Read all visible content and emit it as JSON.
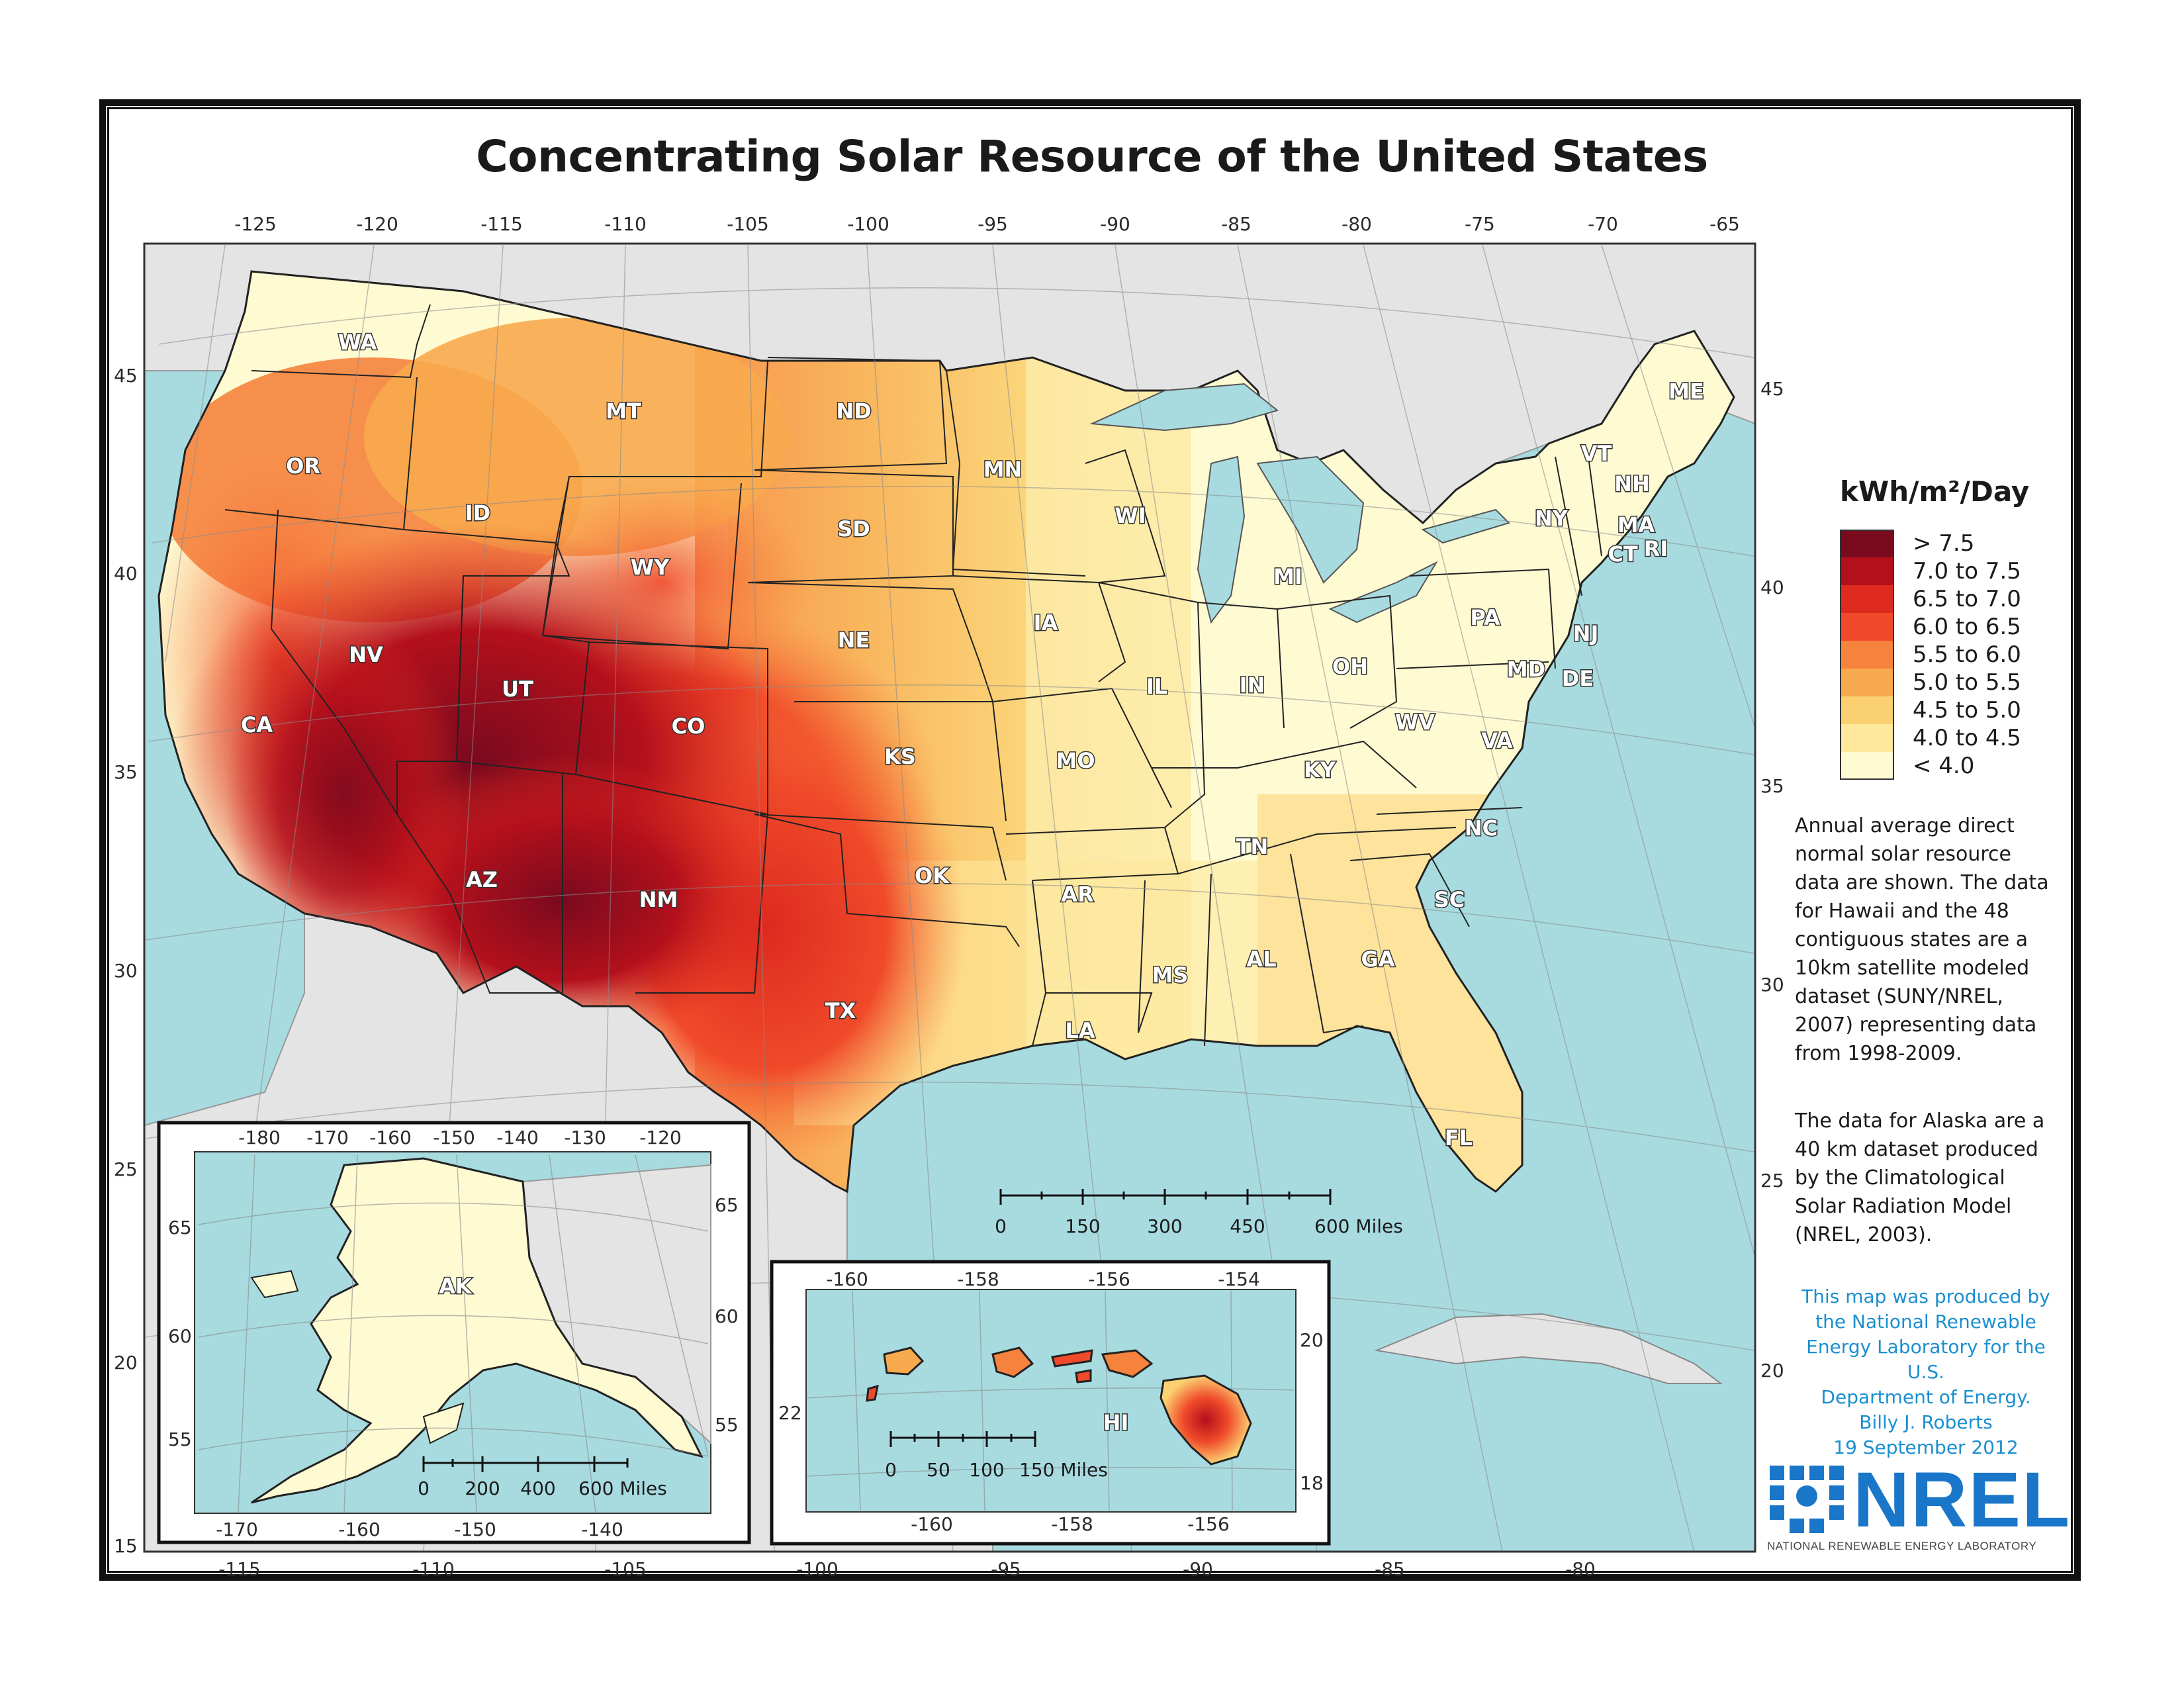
{
  "title": "Concentrating Solar Resource of the United States",
  "legend": {
    "title": "kWh/m²/Day",
    "classes": [
      {
        "label": "> 7.5",
        "color": "#7a0a1e"
      },
      {
        "label": "7.0 to 7.5",
        "color": "#b3101c"
      },
      {
        "label": "6.5 to 7.0",
        "color": "#de2a1f"
      },
      {
        "label": "6.0 to 6.5",
        "color": "#f04a2a"
      },
      {
        "label": "5.5 to 6.0",
        "color": "#f6833d"
      },
      {
        "label": "5.0 to 5.5",
        "color": "#f8aa4e"
      },
      {
        "label": "4.5 to 5.0",
        "color": "#fbd070"
      },
      {
        "label": "4.0 to 4.5",
        "color": "#fde89c"
      },
      {
        "label": "< 4.0",
        "color": "#fefad2"
      }
    ]
  },
  "notes": {
    "paragraph1": "Annual average direct normal solar resource data are shown.  The data for Hawaii and the 48 contiguous states are a 10km satellite modeled dataset (SUNY/NREL, 2007) representing data from 1998-2009.",
    "paragraph2": "The data for Alaska are a 40 km dataset produced by the Climatological Solar Radiation Model (NREL, 2003)."
  },
  "credit": {
    "line1": "This map was produced by",
    "line2": "the National Renewable",
    "line3": "Energy Laboratory for the U.S.",
    "line4": "Department of Energy.",
    "line5": "Billy J. Roberts",
    "line6": "19 September 2012"
  },
  "logo": {
    "wordmark": "NREL",
    "subtitle": "NATIONAL RENEWABLE ENERGY LABORATORY"
  },
  "main_map": {
    "lon_ticks_top": [
      "-125",
      "-120",
      "-115",
      "-110",
      "-105",
      "-100",
      "-95",
      "-90",
      "-85",
      "-80",
      "-75",
      "-70",
      "-65"
    ],
    "lon_ticks_bottom": [
      "-115",
      "-110",
      "-105",
      "-100",
      "-95",
      "-90",
      "-85",
      "-80"
    ],
    "lat_ticks_left": [
      "45",
      "40",
      "35",
      "30",
      "25",
      "20",
      "15"
    ],
    "lat_ticks_right": [
      "45",
      "40",
      "35",
      "30",
      "25",
      "20"
    ],
    "scale": {
      "ticks": [
        "0",
        "150",
        "300",
        "450",
        "600 Miles"
      ]
    },
    "states": [
      "WA",
      "OR",
      "CA",
      "NV",
      "ID",
      "MT",
      "WY",
      "UT",
      "CO",
      "AZ",
      "NM",
      "ND",
      "SD",
      "NE",
      "KS",
      "OK",
      "TX",
      "MN",
      "IA",
      "MO",
      "AR",
      "LA",
      "WI",
      "IL",
      "MI",
      "IN",
      "OH",
      "KY",
      "TN",
      "MS",
      "AL",
      "GA",
      "FL",
      "SC",
      "NC",
      "VA",
      "WV",
      "PA",
      "NY",
      "MD",
      "DE",
      "NJ",
      "VT",
      "NH",
      "MA",
      "CT",
      "RI",
      "ME"
    ]
  },
  "alaska_inset": {
    "label": "AK",
    "lon_ticks_top": [
      "-180",
      "-170",
      "-160",
      "-150",
      "-140",
      "-130",
      "-120"
    ],
    "lon_ticks_bottom": [
      "-170",
      "-160",
      "-150",
      "-140"
    ],
    "lat_ticks_left": [
      "65",
      "60",
      "55"
    ],
    "lat_ticks_right": [
      "65",
      "60",
      "55"
    ],
    "scale": {
      "ticks": [
        "0",
        "200",
        "400",
        "600 Miles"
      ]
    }
  },
  "hawaii_inset": {
    "label": "HI",
    "lon_ticks_top": [
      "-160",
      "-158",
      "-156",
      "-154"
    ],
    "lon_ticks_bottom": [
      "-160",
      "-158",
      "-156"
    ],
    "lat_ticks_left": [
      "22"
    ],
    "lat_ticks_right": [
      "20",
      "18"
    ],
    "scale": {
      "ticks": [
        "0",
        "50",
        "100",
        "150 Miles"
      ]
    }
  }
}
